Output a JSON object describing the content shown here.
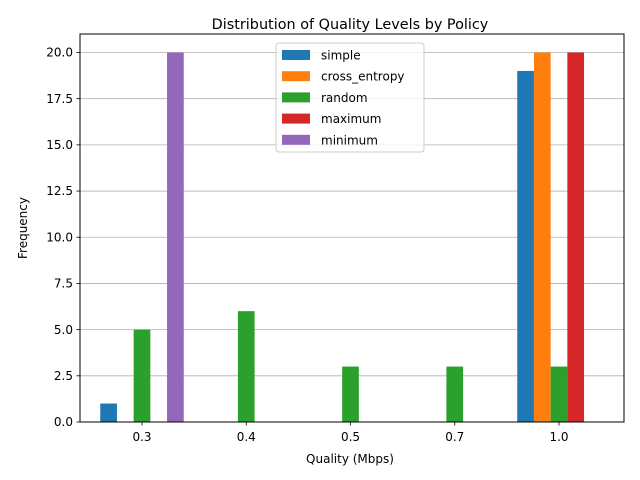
{
  "chart_data": {
    "type": "bar",
    "title": "Distribution of Quality Levels by Policy",
    "xlabel": "Quality (Mbps)",
    "ylabel": "Frequency",
    "categories": [
      "0.3",
      "0.4",
      "0.5",
      "0.7",
      "1.0"
    ],
    "ylim": [
      0,
      21
    ],
    "yticks": [
      "0.0",
      "2.5",
      "5.0",
      "7.5",
      "10.0",
      "12.5",
      "15.0",
      "17.5",
      "20.0"
    ],
    "grid": "horizontal",
    "legend_position": "top-center",
    "series": [
      {
        "name": "simple",
        "color": "#1f77b4",
        "values": [
          1,
          0,
          0,
          0,
          19
        ]
      },
      {
        "name": "cross_entropy",
        "color": "#ff7f0e",
        "values": [
          0,
          0,
          0,
          0,
          20
        ]
      },
      {
        "name": "random",
        "color": "#2ca02c",
        "values": [
          5,
          6,
          3,
          3,
          3
        ]
      },
      {
        "name": "maximum",
        "color": "#d62728",
        "values": [
          0,
          0,
          0,
          0,
          20
        ]
      },
      {
        "name": "minimum",
        "color": "#9467bd",
        "values": [
          20,
          0,
          0,
          0,
          0
        ]
      }
    ]
  }
}
